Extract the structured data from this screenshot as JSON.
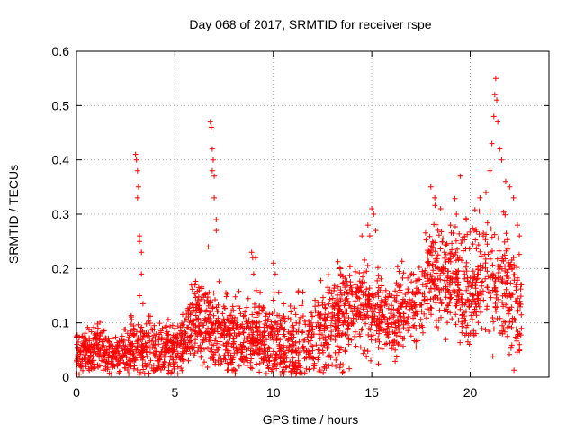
{
  "chart_data": {
    "type": "scatter",
    "title": "Day 068 of 2017, SRMTID for receiver rspe",
    "xlabel": "GPS time / hours",
    "ylabel": "SRMTID / TECUs",
    "xlim": [
      0,
      24
    ],
    "ylim": [
      0,
      0.6
    ],
    "xticks": [
      0,
      5,
      10,
      15,
      20
    ],
    "xtick_labels": [
      "0",
      "5",
      "10",
      "15",
      "20"
    ],
    "yticks": [
      0,
      0.1,
      0.2,
      0.3,
      0.4,
      0.5,
      0.6
    ],
    "ytick_labels": [
      "0",
      "0.1",
      "0.2",
      "0.3",
      "0.4",
      "0.5",
      "0.6"
    ],
    "grid": true,
    "marker": "+",
    "color": "#ff0000",
    "sample_points": [
      [
        3.0,
        0.41
      ],
      [
        3.05,
        0.4
      ],
      [
        3.1,
        0.38
      ],
      [
        3.15,
        0.35
      ],
      [
        3.1,
        0.33
      ],
      [
        3.2,
        0.26
      ],
      [
        3.2,
        0.25
      ],
      [
        3.3,
        0.23
      ],
      [
        3.3,
        0.19
      ],
      [
        3.2,
        0.15
      ],
      [
        6.8,
        0.47
      ],
      [
        6.85,
        0.46
      ],
      [
        6.9,
        0.42
      ],
      [
        6.95,
        0.4
      ],
      [
        6.9,
        0.38
      ],
      [
        7.0,
        0.37
      ],
      [
        7.0,
        0.33
      ],
      [
        7.1,
        0.29
      ],
      [
        7.1,
        0.27
      ],
      [
        6.7,
        0.24
      ],
      [
        8.9,
        0.23
      ],
      [
        8.95,
        0.22
      ],
      [
        9.1,
        0.22
      ],
      [
        9.0,
        0.19
      ],
      [
        10.0,
        0.21
      ],
      [
        10.1,
        0.19
      ],
      [
        14.8,
        0.28
      ],
      [
        14.9,
        0.26
      ],
      [
        15.0,
        0.31
      ],
      [
        15.1,
        0.3
      ],
      [
        15.2,
        0.27
      ],
      [
        14.5,
        0.26
      ],
      [
        18.0,
        0.35
      ],
      [
        18.2,
        0.33
      ],
      [
        18.5,
        0.31
      ],
      [
        19.0,
        0.28
      ],
      [
        19.3,
        0.3
      ],
      [
        19.5,
        0.37
      ],
      [
        19.8,
        0.29
      ],
      [
        20.2,
        0.27
      ],
      [
        20.5,
        0.33
      ],
      [
        20.8,
        0.34
      ],
      [
        21.0,
        0.38
      ],
      [
        21.1,
        0.43
      ],
      [
        21.2,
        0.48
      ],
      [
        21.25,
        0.52
      ],
      [
        21.3,
        0.55
      ],
      [
        21.35,
        0.51
      ],
      [
        21.4,
        0.47
      ],
      [
        21.5,
        0.42
      ],
      [
        21.6,
        0.4
      ],
      [
        21.8,
        0.36
      ],
      [
        22.0,
        0.35
      ],
      [
        22.2,
        0.33
      ],
      [
        22.4,
        0.28
      ],
      [
        22.5,
        0.26
      ],
      [
        22.6,
        0.17
      ],
      [
        22.6,
        0.09
      ],
      [
        22.5,
        0.06
      ],
      [
        22.5,
        0.05
      ]
    ],
    "cloud": {
      "seed": 68,
      "points_per_hour": 110,
      "x_end": 22.6,
      "baseline": [
        [
          0,
          0.045
        ],
        [
          1,
          0.05
        ],
        [
          2,
          0.04
        ],
        [
          3,
          0.06
        ],
        [
          4,
          0.05
        ],
        [
          5,
          0.05
        ],
        [
          6,
          0.1
        ],
        [
          7,
          0.09
        ],
        [
          8,
          0.07
        ],
        [
          9,
          0.08
        ],
        [
          10,
          0.07
        ],
        [
          11,
          0.05
        ],
        [
          12,
          0.07
        ],
        [
          13,
          0.1
        ],
        [
          14,
          0.13
        ],
        [
          15,
          0.13
        ],
        [
          16,
          0.1
        ],
        [
          17,
          0.12
        ],
        [
          18,
          0.19
        ],
        [
          19,
          0.18
        ],
        [
          20,
          0.17
        ],
        [
          21,
          0.19
        ],
        [
          22,
          0.16
        ],
        [
          22.6,
          0.12
        ]
      ],
      "spread": [
        [
          0,
          0.03
        ],
        [
          2,
          0.03
        ],
        [
          3,
          0.04
        ],
        [
          5,
          0.035
        ],
        [
          6,
          0.05
        ],
        [
          8,
          0.05
        ],
        [
          10,
          0.055
        ],
        [
          12,
          0.06
        ],
        [
          14,
          0.06
        ],
        [
          16,
          0.05
        ],
        [
          18,
          0.07
        ],
        [
          20,
          0.08
        ],
        [
          22,
          0.08
        ],
        [
          22.6,
          0.06
        ]
      ]
    }
  }
}
